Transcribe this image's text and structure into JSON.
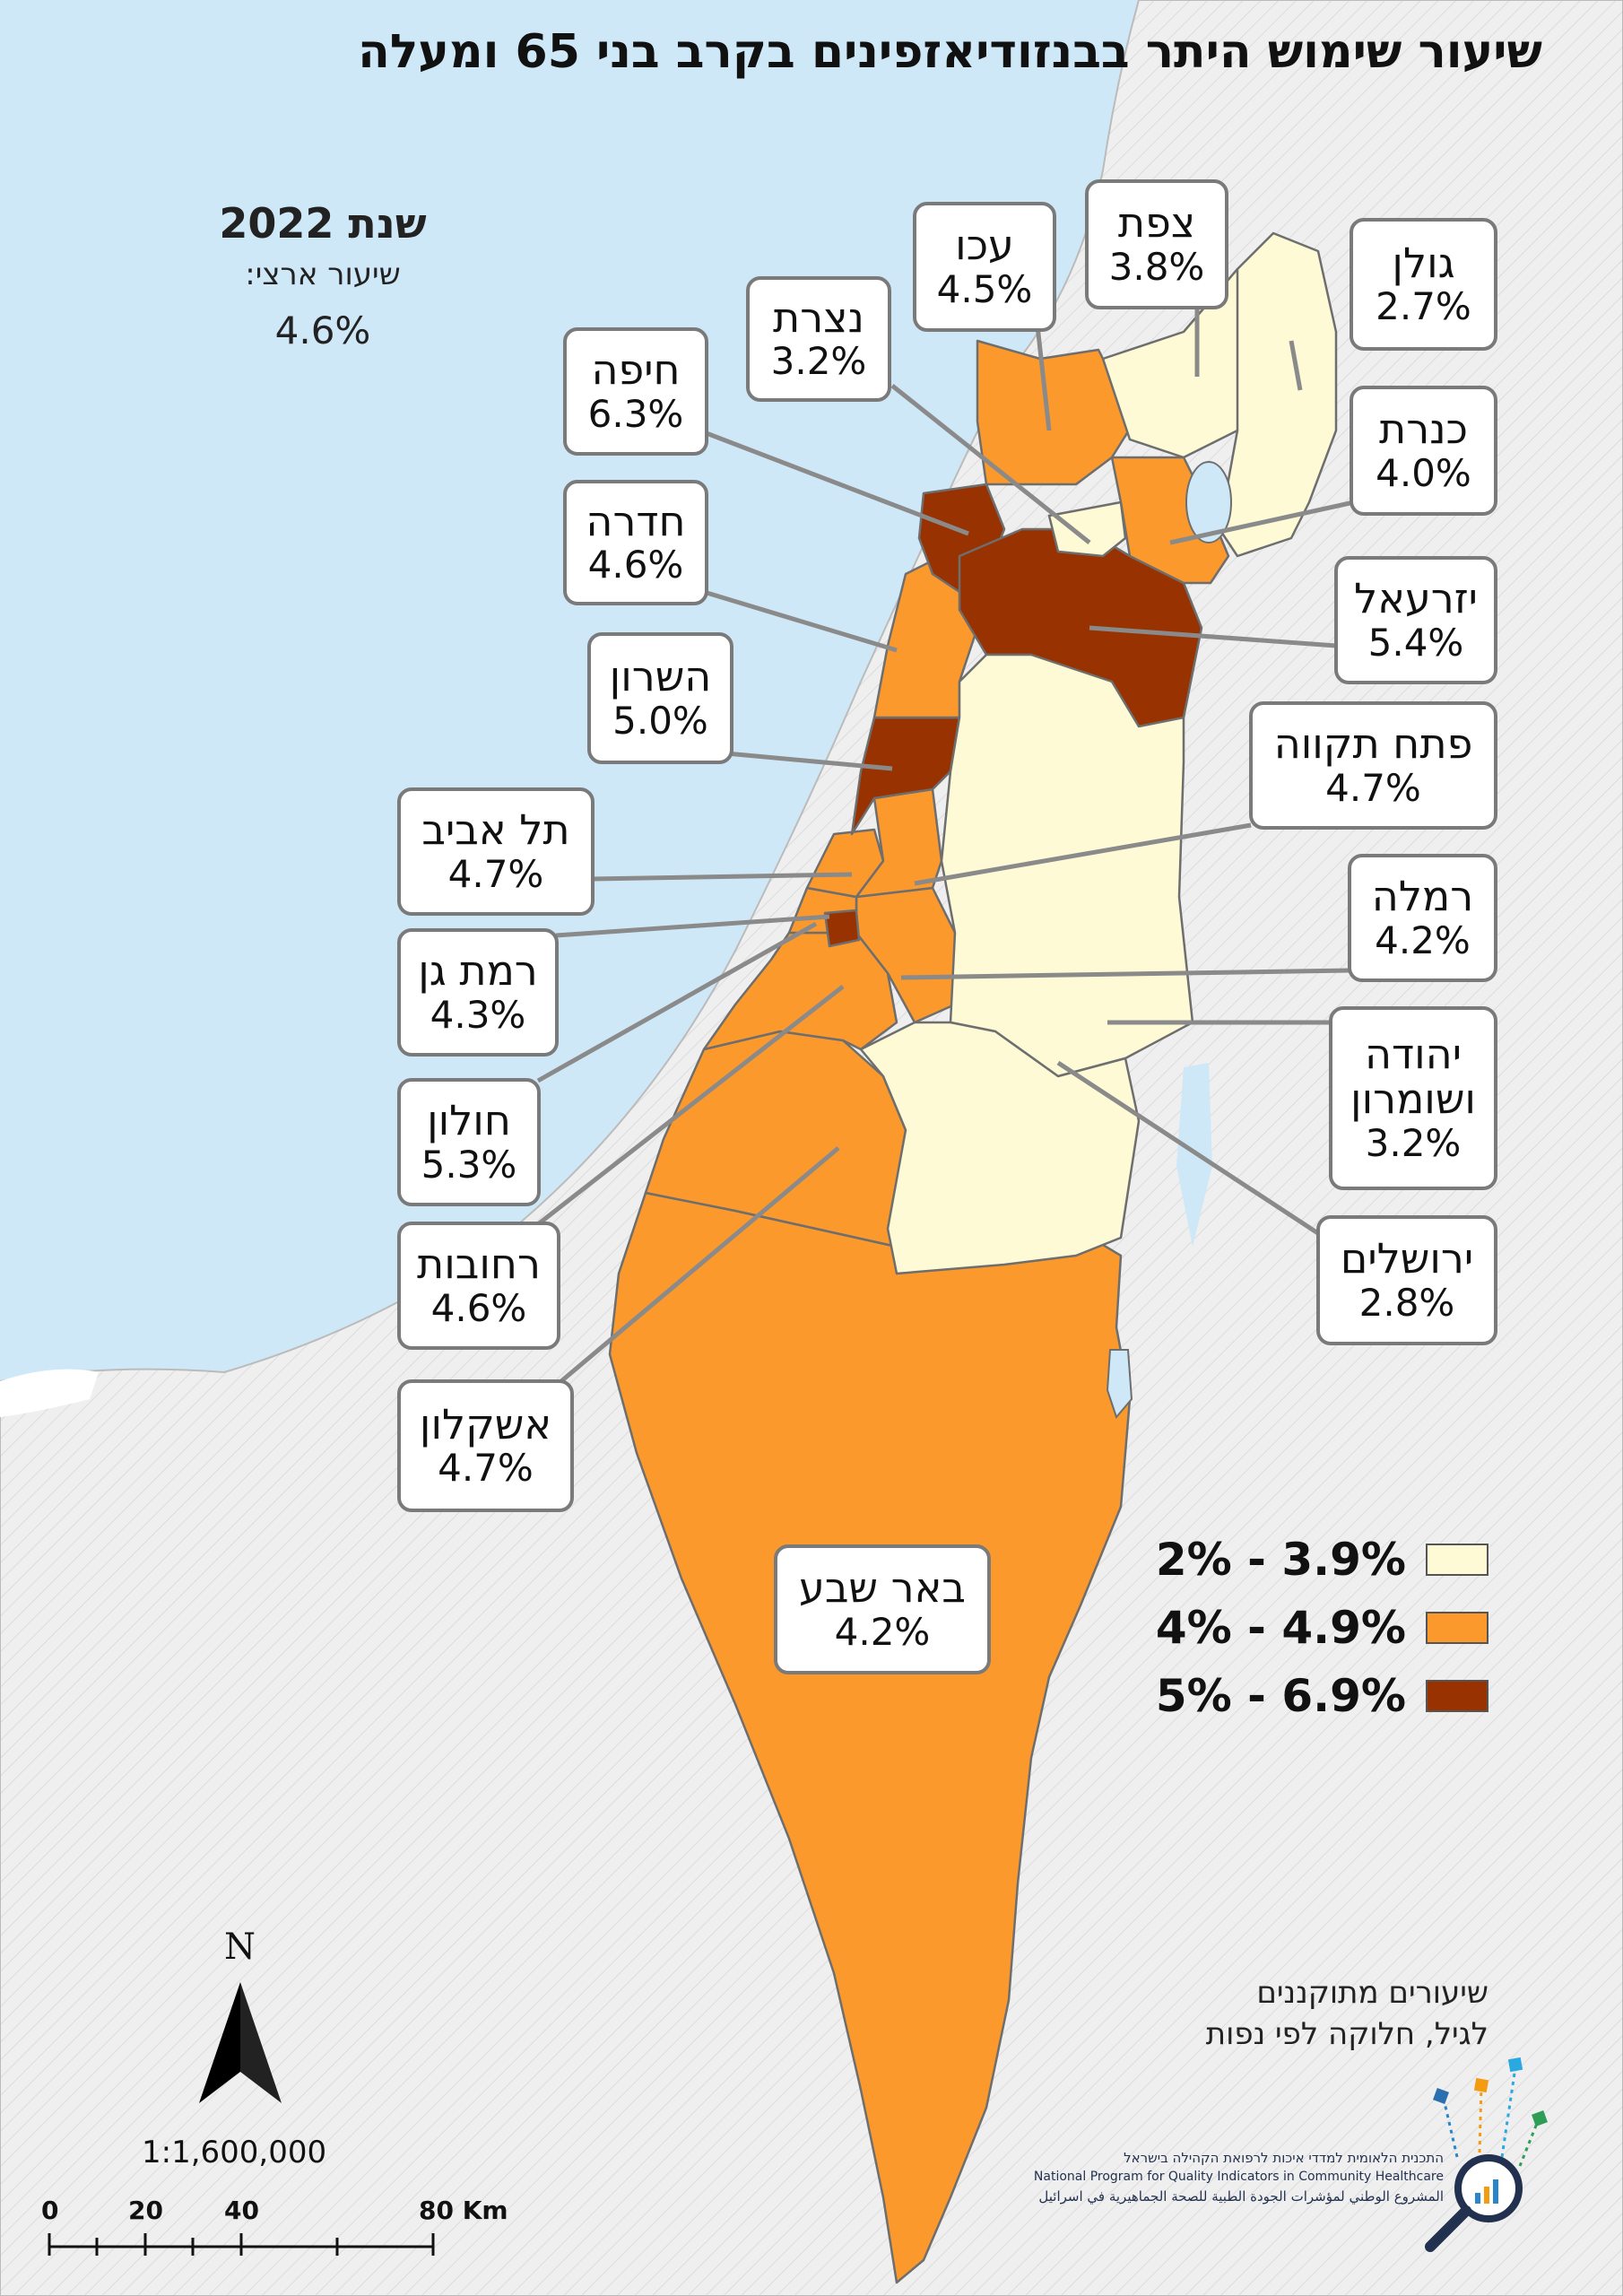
{
  "title": "שיעור שימוש היתר בבנזודיאזפינים בקרב בני 65 ומעלה",
  "year_label": "שנת 2022",
  "national": {
    "label": "שיעור ארצי:",
    "value": "4.6%"
  },
  "colors": {
    "sea": "#cfe8f7",
    "land_outside": "#eeeeee",
    "low": "#fdfad5",
    "mid": "#fc992c",
    "high": "#983200",
    "border": "#6e6e6e"
  },
  "legend": [
    {
      "range": "2% - 3.9%",
      "color": "#fdfad5"
    },
    {
      "range": "4% - 4.9%",
      "color": "#fc992c"
    },
    {
      "range": "5% - 6.9%",
      "color": "#983200"
    }
  ],
  "districts": [
    {
      "id": "golan",
      "name": "גולן",
      "value": "2.7%",
      "class": "low"
    },
    {
      "id": "tzfat",
      "name": "צפת",
      "value": "3.8%",
      "class": "low"
    },
    {
      "id": "akko",
      "name": "עכו",
      "value": "4.5%",
      "class": "mid"
    },
    {
      "id": "nazareth",
      "name": "נצרת",
      "value": "3.2%",
      "class": "low"
    },
    {
      "id": "haifa",
      "name": "חיפה",
      "value": "6.3%",
      "class": "high"
    },
    {
      "id": "kinneret",
      "name": "כנרת",
      "value": "4.0%",
      "class": "mid"
    },
    {
      "id": "hadera",
      "name": "חדרה",
      "value": "4.6%",
      "class": "mid"
    },
    {
      "id": "yizreel",
      "name": "יזרעאל",
      "value": "5.4%",
      "class": "high"
    },
    {
      "id": "sharon",
      "name": "השרון",
      "value": "5.0%",
      "class": "high"
    },
    {
      "id": "petah_tikva",
      "name": "פתח תקווה",
      "value": "4.7%",
      "class": "mid"
    },
    {
      "id": "tel_aviv",
      "name": "תל אביב",
      "value": "4.7%",
      "class": "mid"
    },
    {
      "id": "ramla",
      "name": "רמלה",
      "value": "4.2%",
      "class": "mid"
    },
    {
      "id": "ramat_gan",
      "name": "רמת גן",
      "value": "4.3%",
      "class": "mid"
    },
    {
      "id": "judea_samaria",
      "name": "יהודה ושומרון",
      "value": "3.2%",
      "class": "low"
    },
    {
      "id": "holon",
      "name": "חולון",
      "value": "5.3%",
      "class": "high"
    },
    {
      "id": "jerusalem",
      "name": "ירושלים",
      "value": "2.8%",
      "class": "low"
    },
    {
      "id": "rehovot",
      "name": "רחובות",
      "value": "4.6%",
      "class": "mid"
    },
    {
      "id": "ashkelon",
      "name": "אשקלון",
      "value": "4.7%",
      "class": "mid"
    },
    {
      "id": "beer_sheva",
      "name": "באר שבע",
      "value": "4.2%",
      "class": "mid"
    }
  ],
  "note": {
    "line1": "שיעורים מתוקננים",
    "line2": "לגיל, חלוקה לפי נפות"
  },
  "north_arrow": "N",
  "scale": {
    "ratio": "1:1,600,000",
    "ticks": [
      "0",
      "20",
      "40",
      "80 Km"
    ]
  },
  "logo": {
    "line_he": "התכנית הלאומית למדדי איכות לרפואת הקהילה בישראל",
    "line_en": "National Program for Quality Indicators in Community Healthcare",
    "line_ar": "المشروع الوطني لمؤشرات الجودة الطبية للصحة الجماهيرية في اسرائيل"
  }
}
